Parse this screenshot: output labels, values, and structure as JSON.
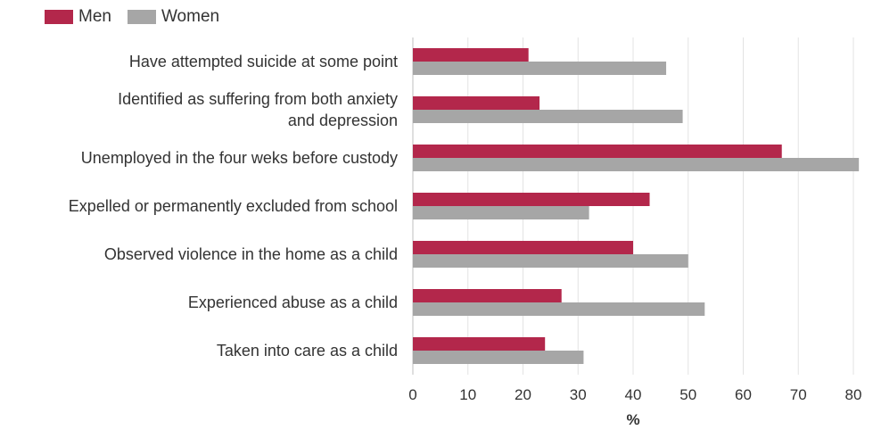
{
  "chart_data": {
    "type": "bar",
    "orientation": "horizontal",
    "categories": [
      "Have attempted suicide at some point",
      "Identified as suffering from both anxiety and depression",
      "Unemployed in the four weks before custody",
      "Expelled or permanently excluded from school",
      "Observed violence in the home as a child",
      "Experienced abuse as a child",
      "Taken into care as a child"
    ],
    "category_lines": [
      [
        "Have attempted suicide at some point"
      ],
      [
        "Identified as suffering from both anxiety",
        "and depression"
      ],
      [
        "Unemployed in the four weks before custody"
      ],
      [
        "Expelled or permanently excluded from school"
      ],
      [
        "Observed violence in the home as a child"
      ],
      [
        "Experienced abuse as a child"
      ],
      [
        "Taken into care as a child"
      ]
    ],
    "series": [
      {
        "name": "Men",
        "color": "#b3274b",
        "values": [
          21,
          23,
          67,
          43,
          40,
          27,
          24
        ]
      },
      {
        "name": "Women",
        "color": "#a6a6a6",
        "values": [
          46,
          49,
          81,
          32,
          50,
          53,
          31
        ]
      }
    ],
    "xlabel": "%",
    "xlim": [
      0,
      80
    ],
    "xticks": [
      "0",
      "10",
      "20",
      "30",
      "40",
      "50",
      "60",
      "70",
      "80"
    ],
    "grid": true,
    "legend_position": "top-left"
  }
}
